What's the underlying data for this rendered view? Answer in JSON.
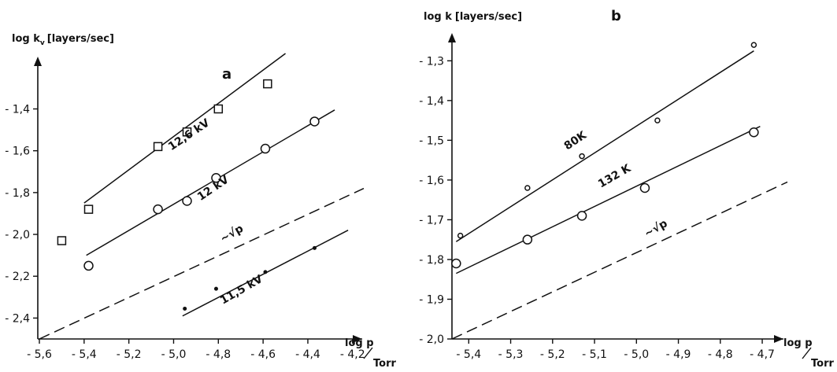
{
  "chart_data": [
    {
      "panel_label": "a",
      "type": "scatter",
      "xlabel_main": "log p",
      "xlabel_unit": "Torr",
      "ylabel_main": "log k",
      "ylabel_sub": "v",
      "ylabel_unit": "[layers/sec]",
      "xlim": [
        -5.6,
        -4.15
      ],
      "ylim": [
        -2.5,
        -1.18
      ],
      "x_ticks": [
        -5.6,
        -5.4,
        -5.2,
        -5.0,
        -4.8,
        -4.6,
        -4.4,
        -4.2
      ],
      "x_tick_labels": [
        "- 5,6",
        "- 5,4",
        "- 5,2",
        "- 5,0",
        "- 4,8",
        "- 4,6",
        "- 4,4",
        "- 4,2"
      ],
      "y_ticks": [
        -1.4,
        -1.6,
        -1.8,
        -2.0,
        -2.2,
        -2.4
      ],
      "y_tick_labels": [
        "- 1,4",
        "- 1,6",
        "- 1,8",
        "- 2,0",
        "- 2,2",
        "- 2,4"
      ],
      "series": [
        {
          "name": "12,6 kV",
          "marker": "square",
          "x": [
            -5.5,
            -5.38,
            -5.07,
            -4.94,
            -4.8,
            -4.58
          ],
          "y": [
            -2.03,
            -1.88,
            -1.58,
            -1.51,
            -1.4,
            -1.28
          ],
          "fit": [
            [
              -5.4,
              -1.85
            ],
            [
              -4.5,
              -1.135
            ]
          ],
          "label_at": [
            -5.01,
            -1.6
          ],
          "label_angle": -34
        },
        {
          "name": "12 kV",
          "marker": "circle",
          "x": [
            -5.38,
            -5.07,
            -4.94,
            -4.81,
            -4.59,
            -4.37
          ],
          "y": [
            -2.15,
            -1.88,
            -1.84,
            -1.73,
            -1.59,
            -1.46
          ],
          "fit": [
            [
              -5.39,
              -2.1
            ],
            [
              -4.28,
              -1.405
            ]
          ],
          "label_at": [
            -4.88,
            -1.84
          ],
          "label_angle": -34
        },
        {
          "name": "11,5 kV",
          "marker": "dot",
          "x": [
            -4.95,
            -4.81,
            -4.59,
            -4.37
          ],
          "y": [
            -2.355,
            -2.26,
            -2.18,
            -2.065
          ],
          "fit": [
            [
              -4.96,
              -2.39
            ],
            [
              -4.22,
              -1.98
            ]
          ],
          "label_at": [
            -4.78,
            -2.335
          ],
          "label_angle": -30
        }
      ],
      "reference": {
        "name": "~√p",
        "fit": [
          [
            -5.6,
            -2.5
          ],
          [
            -4.15,
            -1.78
          ]
        ],
        "label_at": [
          -4.78,
          -2.04
        ],
        "label_angle": -30
      }
    },
    {
      "panel_label": "b",
      "type": "scatter",
      "xlabel_main": "log p",
      "xlabel_unit": "Torr",
      "ylabel_main": "log k",
      "ylabel_sub": "",
      "ylabel_unit": "[layers/sec]",
      "xlim": [
        -5.44,
        -4.64
      ],
      "ylim": [
        -2.0,
        -1.24
      ],
      "x_ticks": [
        -5.4,
        -5.3,
        -5.2,
        -5.1,
        -5.0,
        -4.9,
        -4.8,
        -4.7
      ],
      "x_tick_labels": [
        "- 5,4",
        "- 5,3",
        "- 5,2",
        "- 5,1",
        "- 5,0",
        "- 4,9",
        "- 4,8",
        "- 4,7"
      ],
      "y_ticks": [
        -1.3,
        -1.4,
        -1.5,
        -1.6,
        -1.7,
        -1.8,
        -1.9,
        -2.0
      ],
      "y_tick_labels": [
        "- 1,3",
        "- 1,4",
        "- 1,5",
        "- 1,6",
        "- 1,7",
        "- 1,8",
        "- 1,9",
        "- 2,0"
      ],
      "series": [
        {
          "name": "80K",
          "marker": "small-circle",
          "x": [
            -5.42,
            -5.26,
            -5.13,
            -4.95,
            -4.72
          ],
          "y": [
            -1.74,
            -1.62,
            -1.54,
            -1.45,
            -1.26
          ],
          "fit": [
            [
              -5.43,
              -1.755
            ],
            [
              -4.72,
              -1.275
            ]
          ],
          "label_at": [
            -5.165,
            -1.525
          ],
          "label_angle": -34
        },
        {
          "name": "132 K",
          "marker": "circle",
          "x": [
            -5.43,
            -5.26,
            -5.13,
            -4.98,
            -4.72
          ],
          "y": [
            -1.81,
            -1.75,
            -1.69,
            -1.62,
            -1.48
          ],
          "fit": [
            [
              -5.43,
              -1.835
            ],
            [
              -4.705,
              -1.465
            ]
          ],
          "label_at": [
            -5.085,
            -1.62
          ],
          "label_angle": -30
        }
      ],
      "reference": {
        "name": "~√p",
        "fit": [
          [
            -5.44,
            -2.0
          ],
          [
            -4.64,
            -1.605
          ]
        ],
        "label_at": [
          -4.975,
          -1.745
        ],
        "label_angle": -30
      }
    }
  ]
}
